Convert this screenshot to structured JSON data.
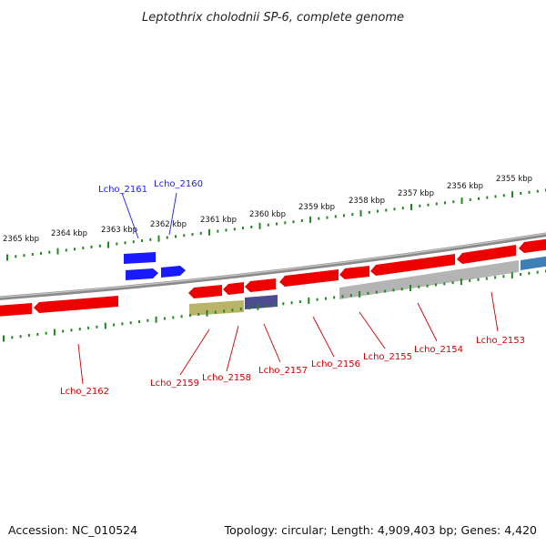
{
  "title": "Leptothrix cholodnii SP-6, complete genome",
  "accession": "Accession: NC_010524",
  "genome_info": "Topology: circular; Length: 4,909,403 bp; Genes: 4,420",
  "scale_labels": [
    "2365 kbp",
    "2364 kbp",
    "2363 kbp",
    "2362 kbp",
    "2361 kbp",
    "2360 kbp",
    "2359 kbp",
    "2358 kbp",
    "2357 kbp",
    "2356 kbp",
    "2355 kbp"
  ],
  "colors": {
    "forward_gene": "#1a1aff",
    "reverse_gene": "#ee0000",
    "backbone": "#8a8a8a",
    "ticks": "#228822",
    "label_blue": "#1a1aff",
    "label_red": "#cc0000"
  },
  "genes_forward_labels": [
    "Lcho_2161",
    "Lcho_2160"
  ],
  "genes_reverse_labels": [
    "Lcho_2162",
    "Lcho_2159",
    "Lcho_2158",
    "Lcho_2157",
    "Lcho_2156",
    "Lcho_2155",
    "Lcho_2154",
    "Lcho_2153"
  ]
}
